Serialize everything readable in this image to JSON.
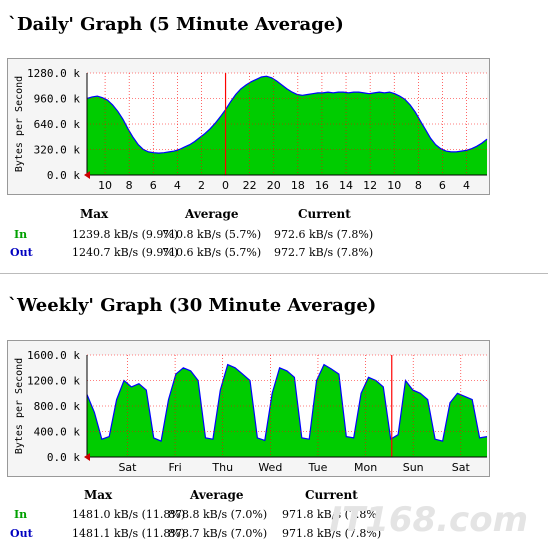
{
  "daily": {
    "title": "`Daily' Graph (5 Minute Average)",
    "stats": {
      "headers": [
        "Max",
        "Average",
        "Current"
      ],
      "rows": [
        {
          "label": "In",
          "max": "1239.8 kB/s (9.9%)",
          "avg": "710.8 kB/s (5.7%)",
          "cur": "972.6 kB/s (7.8%)"
        },
        {
          "label": "Out",
          "max": "1240.7 kB/s (9.9%)",
          "avg": "710.6 kB/s (5.7%)",
          "cur": "972.7 kB/s (7.8%)"
        }
      ]
    }
  },
  "weekly": {
    "title": "`Weekly' Graph (30 Minute Average)",
    "stats": {
      "headers": [
        "Max",
        "Average",
        "Current"
      ],
      "rows": [
        {
          "label": "In",
          "max": "1481.0 kB/s (11.8%)",
          "avg": "878.8 kB/s (7.0%)",
          "cur": "971.8 kB/s (7.8%)"
        },
        {
          "label": "Out",
          "max": "1481.1 kB/s (11.8%)",
          "avg": "878.7 kB/s (7.0%)",
          "cur": "971.8 kB/s (7.8%)"
        }
      ]
    }
  },
  "watermark": "IT168.com",
  "colors": {
    "fill": "#00cc00",
    "line": "#0000ff",
    "grid": "#ff0000",
    "marker": "#ff0000"
  },
  "chart_data": [
    {
      "type": "area",
      "title": "`Daily' Graph (5 Minute Average)",
      "ylabel": "Bytes per Second",
      "ylim": [
        0,
        1280
      ],
      "yticks": [
        "0.0 k",
        "320.0 k",
        "640.0 k",
        "960.0 k",
        "1280.0 k"
      ],
      "yticks_values": [
        0,
        320,
        640,
        960,
        1280
      ],
      "xticks": [
        "10",
        "8",
        "6",
        "4",
        "2",
        "0",
        "22",
        "20",
        "18",
        "16",
        "14",
        "12",
        "10",
        "8",
        "6",
        "4"
      ],
      "marker_after_tick": "0",
      "series": [
        {
          "name": "In",
          "values": [
            960,
            980,
            990,
            970,
            940,
            880,
            800,
            700,
            580,
            470,
            380,
            320,
            290,
            280,
            275,
            280,
            290,
            300,
            320,
            350,
            380,
            420,
            470,
            520,
            580,
            650,
            730,
            820,
            920,
            1010,
            1080,
            1130,
            1170,
            1200,
            1230,
            1240,
            1220,
            1180,
            1130,
            1080,
            1040,
            1010,
            1000,
            1010,
            1020,
            1030,
            1030,
            1040,
            1030,
            1040,
            1040,
            1030,
            1040,
            1040,
            1030,
            1020,
            1030,
            1040,
            1030,
            1040,
            1020,
            990,
            950,
            880,
            790,
            680,
            570,
            460,
            380,
            330,
            300,
            290,
            290,
            300,
            310,
            330,
            360,
            400,
            450
          ]
        }
      ]
    },
    {
      "type": "area",
      "title": "`Weekly' Graph (30 Minute Average)",
      "ylabel": "Bytes per Second",
      "ylim": [
        0,
        1600
      ],
      "yticks": [
        "0.0 k",
        "400.0 k",
        "800.0 k",
        "1200.0 k",
        "1600.0 k"
      ],
      "yticks_values": [
        0,
        400,
        800,
        1200,
        1600
      ],
      "xticks": [
        "Sat",
        "Fri",
        "Thu",
        "Wed",
        "Tue",
        "Mon",
        "Sun",
        "Sat"
      ],
      "marker_after_tick": "Mon",
      "series": [
        {
          "name": "In",
          "values": [
            980,
            700,
            280,
            320,
            900,
            1200,
            1100,
            1150,
            1050,
            300,
            250,
            900,
            1300,
            1400,
            1350,
            1200,
            300,
            280,
            1050,
            1450,
            1400,
            1300,
            1200,
            300,
            260,
            1000,
            1400,
            1350,
            1250,
            300,
            280,
            1200,
            1450,
            1380,
            1300,
            320,
            300,
            1000,
            1250,
            1200,
            1100,
            280,
            350,
            1200,
            1050,
            1000,
            900,
            280,
            250,
            850,
            1000,
            950,
            900,
            300,
            320
          ]
        }
      ]
    }
  ]
}
